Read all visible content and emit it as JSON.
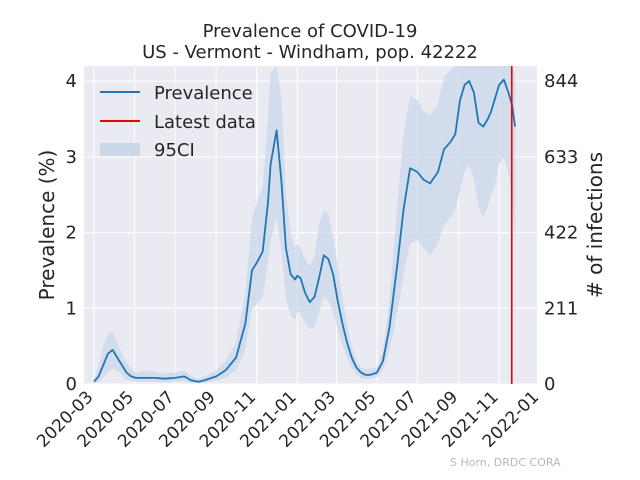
{
  "chart_data": {
    "type": "line",
    "title": "Prevalence of COVID-19",
    "subtitle": "US - Vermont - Windham, pop. 42222",
    "ylabel": "Prevalence (%)",
    "ylabel_right": "# of infections",
    "xlabel": "",
    "ylim": [
      0,
      4.2
    ],
    "xlim": [
      "2020-02-15",
      "2021-12-28"
    ],
    "y_ticks": [
      0,
      1,
      2,
      3,
      4
    ],
    "y_ticks_right": [
      0,
      211,
      422,
      633,
      844
    ],
    "x_ticks": [
      "2020-03",
      "2020-05",
      "2020-07",
      "2020-09",
      "2020-11",
      "2021-01",
      "2021-03",
      "2021-05",
      "2021-07",
      "2021-09",
      "2021-11",
      "2022-01"
    ],
    "grid": true,
    "legend_position": "top-left",
    "legend": [
      "Prevalence",
      "Latest data",
      "95CI"
    ],
    "latest_data_date": "2021-11-20",
    "colors": {
      "line": "#1f77b4",
      "latest": "#e8000b",
      "ci": "#c9d7e9",
      "background": "#eaeaf2"
    },
    "series": [
      {
        "name": "Prevalence",
        "x": [
          "2020-03-01",
          "2020-03-08",
          "2020-03-15",
          "2020-03-22",
          "2020-03-29",
          "2020-04-05",
          "2020-04-12",
          "2020-04-19",
          "2020-04-26",
          "2020-05-03",
          "2020-05-17",
          "2020-06-01",
          "2020-06-15",
          "2020-07-01",
          "2020-07-15",
          "2020-07-25",
          "2020-08-05",
          "2020-08-15",
          "2020-09-01",
          "2020-09-15",
          "2020-10-01",
          "2020-10-15",
          "2020-10-25",
          "2020-11-01",
          "2020-11-10",
          "2020-11-18",
          "2020-11-22",
          "2020-12-01",
          "2020-12-08",
          "2020-12-15",
          "2020-12-22",
          "2020-12-29",
          "2021-01-01",
          "2021-01-06",
          "2021-01-13",
          "2021-01-20",
          "2021-01-27",
          "2021-02-03",
          "2021-02-10",
          "2021-02-17",
          "2021-02-24",
          "2021-03-03",
          "2021-03-10",
          "2021-03-17",
          "2021-03-24",
          "2021-03-31",
          "2021-04-07",
          "2021-04-14",
          "2021-04-21",
          "2021-05-01",
          "2021-05-10",
          "2021-05-20",
          "2021-06-01",
          "2021-06-10",
          "2021-06-20",
          "2021-07-01",
          "2021-07-10",
          "2021-07-20",
          "2021-08-01",
          "2021-08-10",
          "2021-08-20",
          "2021-08-27",
          "2021-09-03",
          "2021-09-10",
          "2021-09-17",
          "2021-09-24",
          "2021-10-01",
          "2021-10-08",
          "2021-10-15",
          "2021-10-20",
          "2021-10-25",
          "2021-11-01",
          "2021-11-08",
          "2021-11-15",
          "2021-11-20",
          "2021-11-25"
        ],
        "values": [
          0.03,
          0.1,
          0.25,
          0.4,
          0.45,
          0.35,
          0.25,
          0.15,
          0.1,
          0.08,
          0.08,
          0.08,
          0.07,
          0.08,
          0.1,
          0.05,
          0.03,
          0.05,
          0.1,
          0.18,
          0.35,
          0.8,
          1.5,
          1.6,
          1.75,
          2.4,
          2.9,
          3.35,
          2.7,
          1.8,
          1.45,
          1.38,
          1.43,
          1.4,
          1.2,
          1.08,
          1.15,
          1.4,
          1.7,
          1.65,
          1.45,
          1.1,
          0.8,
          0.55,
          0.35,
          0.22,
          0.15,
          0.12,
          0.12,
          0.15,
          0.3,
          0.75,
          1.6,
          2.3,
          2.85,
          2.8,
          2.7,
          2.65,
          2.8,
          3.1,
          3.2,
          3.3,
          3.75,
          3.95,
          4.0,
          3.85,
          3.45,
          3.4,
          3.5,
          3.6,
          3.75,
          3.95,
          4.02,
          3.85,
          3.7,
          3.4
        ]
      }
    ],
    "ci_upper": [
      0.06,
      0.25,
      0.5,
      0.65,
      0.7,
      0.55,
      0.4,
      0.28,
      0.2,
      0.15,
      0.18,
      0.16,
      0.14,
      0.15,
      0.18,
      0.11,
      0.07,
      0.1,
      0.18,
      0.3,
      0.55,
      1.2,
      2.2,
      2.4,
      2.6,
      3.5,
      4.1,
      4.6,
      3.8,
      2.5,
      2.0,
      1.8,
      1.85,
      1.8,
      1.65,
      1.55,
      1.7,
      2.1,
      2.3,
      2.25,
      1.95,
      1.55,
      1.15,
      0.8,
      0.5,
      0.32,
      0.22,
      0.2,
      0.2,
      0.22,
      0.45,
      1.1,
      2.4,
      3.3,
      3.8,
      3.75,
      3.6,
      3.55,
      3.7,
      4.05,
      4.15,
      4.3,
      4.6,
      4.8,
      4.85,
      4.7,
      4.3,
      4.25,
      4.35,
      4.45,
      4.6,
      4.8,
      4.9,
      4.7,
      4.5,
      4.1
    ],
    "ci_lower": [
      0.01,
      0.03,
      0.08,
      0.15,
      0.2,
      0.18,
      0.12,
      0.06,
      0.04,
      0.03,
      0.03,
      0.03,
      0.02,
      0.03,
      0.04,
      0.01,
      0.01,
      0.02,
      0.04,
      0.08,
      0.18,
      0.45,
      1.0,
      1.05,
      1.15,
      1.6,
      1.9,
      2.2,
      1.75,
      1.15,
      0.9,
      0.85,
      0.95,
      0.95,
      0.8,
      0.72,
      0.75,
      0.95,
      1.15,
      1.1,
      0.95,
      0.72,
      0.52,
      0.35,
      0.22,
      0.13,
      0.08,
      0.07,
      0.07,
      0.09,
      0.18,
      0.45,
      0.95,
      1.45,
      1.85,
      1.9,
      1.8,
      1.7,
      1.85,
      2.1,
      2.2,
      2.3,
      2.55,
      2.8,
      2.9,
      2.7,
      2.35,
      2.2,
      2.35,
      2.5,
      2.6,
      2.9,
      3.0,
      2.8,
      2.5,
      1.9
    ]
  },
  "credit": "S Horn, DRDC CORA"
}
